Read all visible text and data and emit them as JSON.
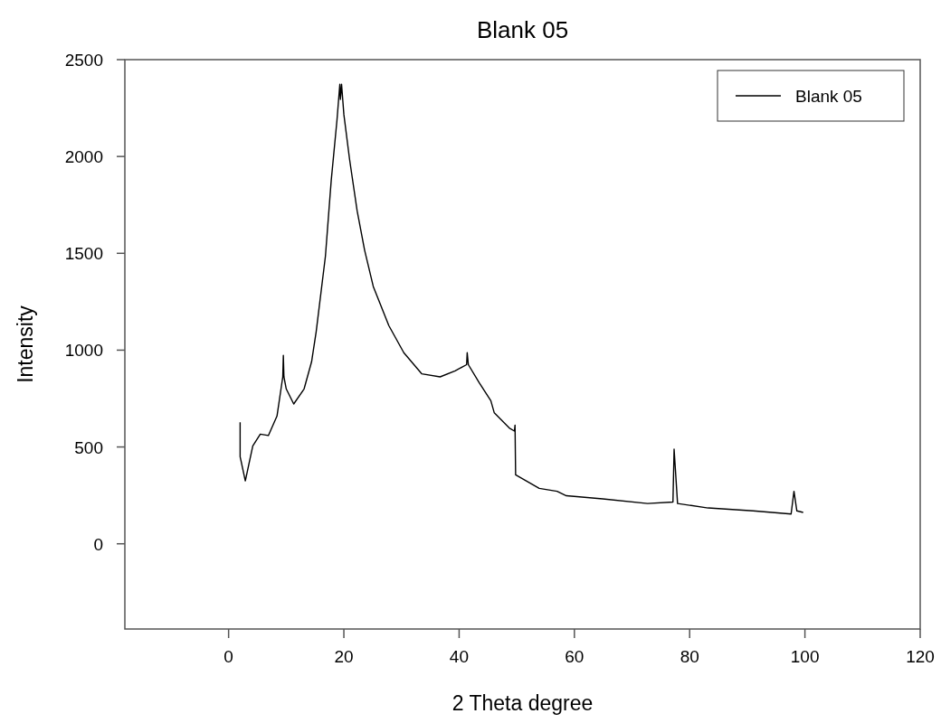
{
  "chart_data": {
    "type": "line",
    "title": "Blank 05",
    "xlabel": "2 Theta degree",
    "ylabel": "Intensity",
    "xlim": [
      -18,
      120
    ],
    "xticks": [
      0,
      20,
      40,
      60,
      80,
      100,
      120
    ],
    "ylim": [
      -440,
      2500
    ],
    "yticks": [
      0,
      500,
      1000,
      1500,
      2000,
      2500
    ],
    "grid": false,
    "legend": "top right",
    "marker": "none",
    "line_style": "solid",
    "series": [
      {
        "name": "Blank 05",
        "color": "#000000",
        "x": [
          2.0,
          2.0,
          2.9,
          4.2,
          5.5,
          6.9,
          8.4,
          9.4,
          9.5,
          9.6,
          10.0,
          11.3,
          13.1,
          14.4,
          15.2,
          16.8,
          17.8,
          18.8,
          19.3,
          19.4,
          19.6,
          20.0,
          21.0,
          22.3,
          23.6,
          25.1,
          27.8,
          30.4,
          33.5,
          36.7,
          39.3,
          41.3,
          41.4,
          41.6,
          43.5,
          45.5,
          46.1,
          48.7,
          49.6,
          49.7,
          49.8,
          53.9,
          57.0,
          58.6,
          64.9,
          72.7,
          77.1,
          77.3,
          77.9,
          83.2,
          91.0,
          97.6,
          98.1,
          98.6,
          99.7
        ],
        "values": [
          627,
          450,
          325,
          506,
          566,
          559,
          660,
          862,
          973,
          862,
          800,
          722,
          800,
          940,
          1096,
          1485,
          1874,
          2186,
          2373,
          2295,
          2373,
          2217,
          1983,
          1720,
          1516,
          1329,
          1127,
          987,
          878,
          862,
          893,
          925,
          987,
          925,
          831,
          739,
          676,
          598,
          582,
          613,
          356,
          286,
          271,
          248,
          232,
          208,
          216,
          489,
          208,
          185,
          170,
          154,
          271,
          170,
          162
        ]
      }
    ]
  }
}
